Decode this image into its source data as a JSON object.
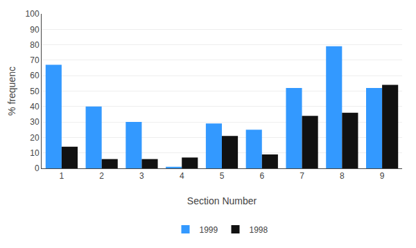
{
  "chart_data": {
    "type": "bar",
    "xlabel": "Section Number",
    "ylabel": "% frequenc",
    "categories": [
      "1",
      "2",
      "3",
      "4",
      "5",
      "6",
      "7",
      "8",
      "9"
    ],
    "series": [
      {
        "name": "1999",
        "color": "#3399ff",
        "values": [
          67,
          40,
          30,
          1,
          29,
          25,
          52,
          79,
          52
        ]
      },
      {
        "name": "1998",
        "color": "#111111",
        "values": [
          14,
          6,
          6,
          7,
          21,
          9,
          34,
          36,
          54
        ]
      }
    ],
    "ylim": [
      0,
      100
    ],
    "yticks": [
      0,
      10,
      20,
      30,
      40,
      50,
      60,
      70,
      80,
      90,
      100
    ],
    "grid": true,
    "legend": "bottom"
  }
}
